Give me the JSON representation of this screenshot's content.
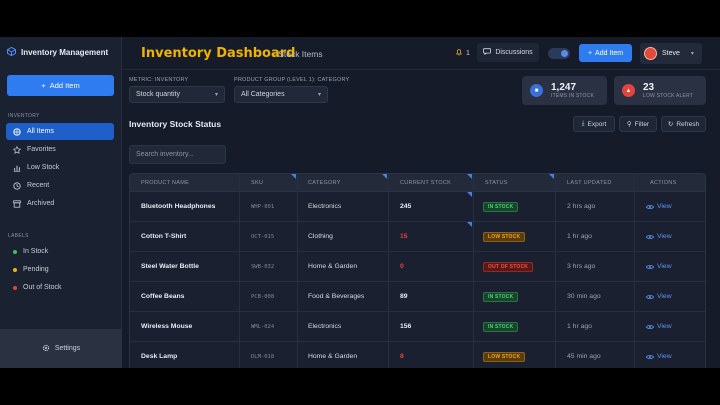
{
  "app": {
    "name": "Inventory Management"
  },
  "sidebar": {
    "add_label": "Add Item",
    "inventory_section": "INVENTORY",
    "nav": [
      {
        "label": "All Items",
        "icon": "box-icon",
        "active": true
      },
      {
        "label": "Favorites",
        "icon": "star-icon"
      },
      {
        "label": "Low Stock",
        "icon": "chart-icon"
      },
      {
        "label": "Recent",
        "icon": "clock-icon"
      },
      {
        "label": "Archived",
        "icon": "archive-icon"
      }
    ],
    "labels_section": "LABELS",
    "labels": [
      {
        "label": "In Stock",
        "color": "#3fbf5f"
      },
      {
        "label": "Pending",
        "color": "#e2b71f"
      },
      {
        "label": "Out of Stock",
        "color": "#e2453b"
      }
    ],
    "settings_label": "Settings"
  },
  "header": {
    "title": "Inventory Dashboard",
    "subtitle": "- Stock Items",
    "notification_count": "1",
    "discussions_label": "Discussions",
    "add_label": "Add Item",
    "user_name": "Steve"
  },
  "filters": {
    "metric_label": "METRIC: INVENTORY",
    "metric_value": "Stock quantity",
    "group_label": "PRODUCT GROUP (LEVEL 1): CATEGORY",
    "group_value": "All Categories"
  },
  "stats": [
    {
      "value": "1,247",
      "label": "ITEMS IN STOCK",
      "color": "#3a6fd8"
    },
    {
      "value": "23",
      "label": "LOW STOCK ALERT",
      "color": "#e2453b"
    }
  ],
  "section": {
    "title": "Inventory Stock Status",
    "export_label": "Export",
    "filter_label": "Filter",
    "refresh_label": "Refresh",
    "search_placeholder": "Search inventory..."
  },
  "table": {
    "columns": [
      "PRODUCT NAME",
      "SKU",
      "CATEGORY",
      "CURRENT STOCK",
      "STATUS",
      "LAST UPDATED",
      "ACTIONS"
    ],
    "rows": [
      {
        "name": "Bluetooth Headphones",
        "sku": "WHP-001",
        "category": "Electronics",
        "stock": "245",
        "stock_color": "#e6ebf2",
        "status": "IN STOCK",
        "updated": "2 hrs ago",
        "action": "View"
      },
      {
        "name": "Cotton T-Shirt",
        "sku": "OCT-015",
        "category": "Clothing",
        "stock": "15",
        "stock_color": "#e2453b",
        "status": "LOW STOCK",
        "updated": "1 hr ago",
        "action": "View"
      },
      {
        "name": "Steel Water Bottle",
        "sku": "SWB-032",
        "category": "Home & Garden",
        "stock": "0",
        "stock_color": "#e2453b",
        "status": "OUT OF STOCK",
        "updated": "3 hrs ago",
        "action": "View"
      },
      {
        "name": "Coffee Beans",
        "sku": "PCB-008",
        "category": "Food & Beverages",
        "stock": "89",
        "stock_color": "#e6ebf2",
        "status": "IN STOCK",
        "updated": "30 min ago",
        "action": "View"
      },
      {
        "name": "Wireless Mouse",
        "sku": "WML-024",
        "category": "Electronics",
        "stock": "156",
        "stock_color": "#e6ebf2",
        "status": "IN STOCK",
        "updated": "1 hr ago",
        "action": "View"
      },
      {
        "name": "Desk Lamp",
        "sku": "DLM-018",
        "category": "Home & Garden",
        "stock": "8",
        "stock_color": "#e2453b",
        "status": "LOW STOCK",
        "updated": "45 min ago",
        "action": "View"
      }
    ]
  },
  "colors": {
    "accent": "#2f7bf0",
    "title": "#f0b400",
    "in_stock": "#3fbf5f",
    "low_stock": "#e2a11f",
    "out_of_stock": "#e2453b"
  }
}
